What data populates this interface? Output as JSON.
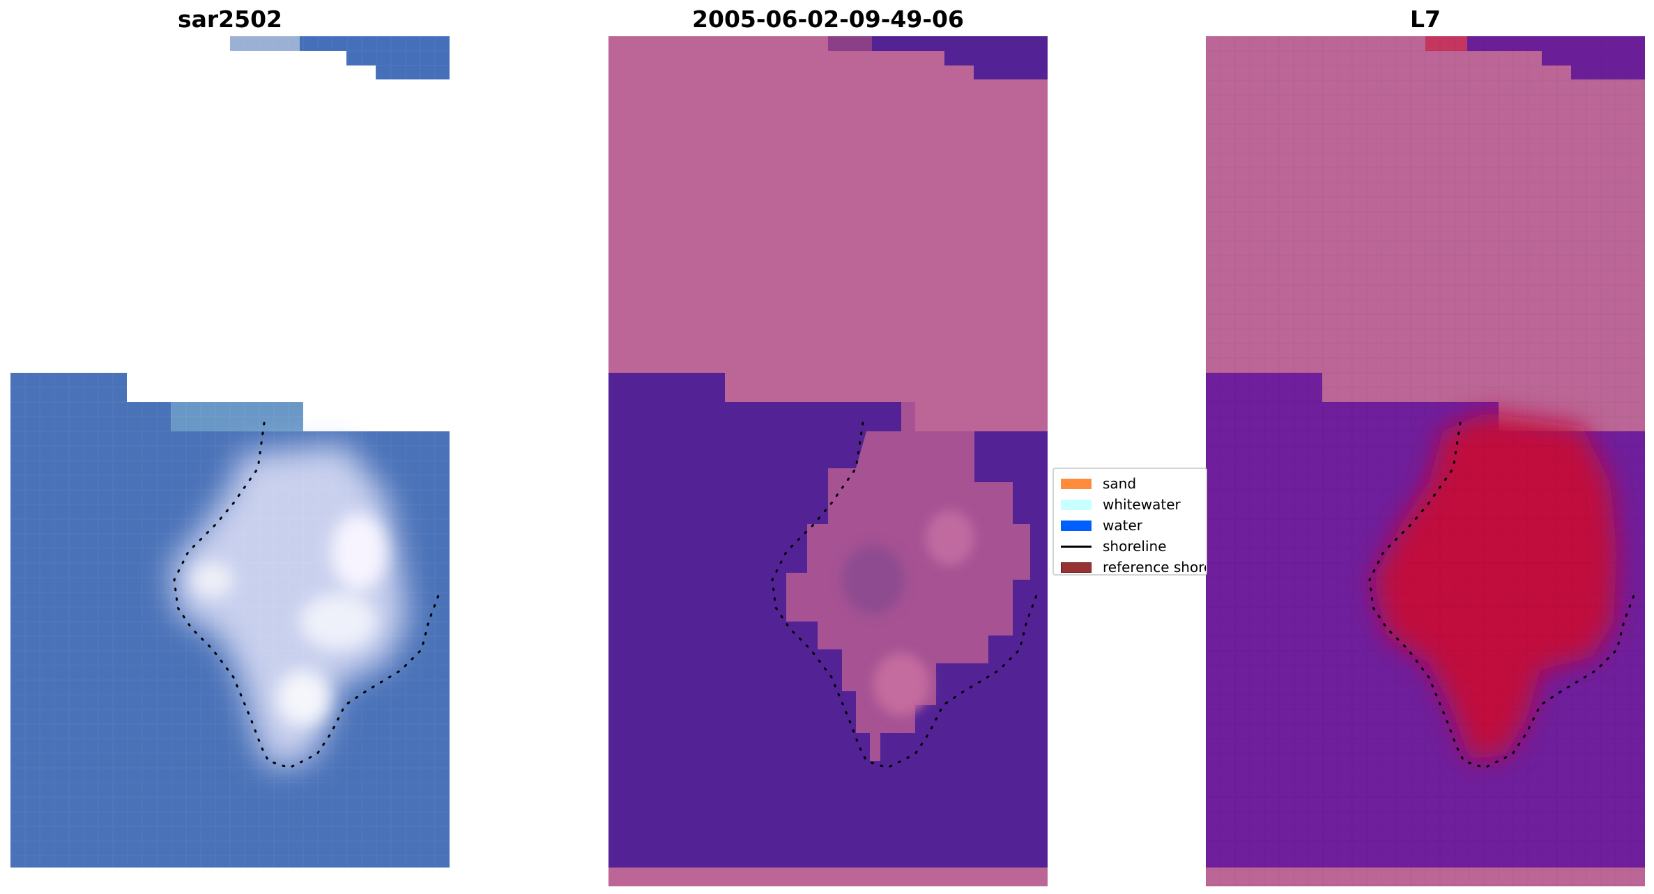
{
  "panels": [
    {
      "title": "sar2502",
      "kind": "rgb-image",
      "colors": {
        "water": "#4a72b8",
        "whitewater": "#f2f4fb",
        "light": "#a9b4de",
        "cyan_tint": "#7faecc"
      }
    },
    {
      "title": "2005-06-02-09-49-06",
      "kind": "classified-image",
      "colors": {
        "land": "#bb6696",
        "water": "#532395",
        "blend": "#9b5795"
      }
    },
    {
      "title": "L7",
      "kind": "index-image",
      "colors": {
        "land": "#bb6696",
        "water": "#6f1e9c",
        "high": "#c2003a"
      }
    }
  ],
  "legend": {
    "items": [
      {
        "label": "sand",
        "color": "#ff8c3c",
        "type": "patch"
      },
      {
        "label": "whitewater",
        "color": "#c8ffff",
        "type": "patch"
      },
      {
        "label": "water",
        "color": "#0060ff",
        "type": "patch"
      },
      {
        "label": "shoreline",
        "color": "#000000",
        "type": "line"
      },
      {
        "label": "reference shoreline",
        "color": "#993333",
        "type": "patch"
      }
    ]
  }
}
